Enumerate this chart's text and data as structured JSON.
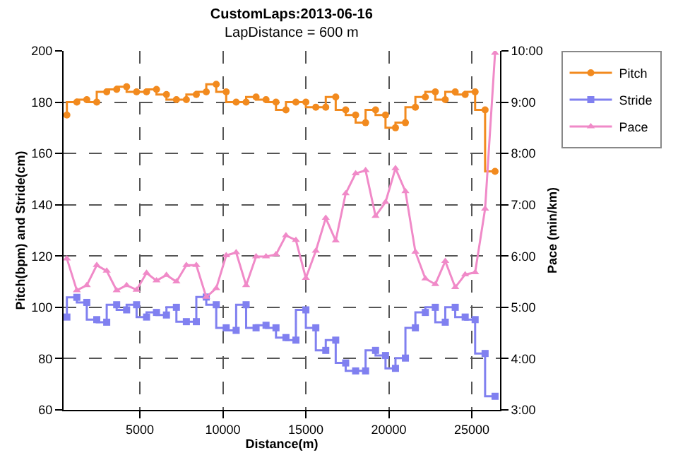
{
  "chart_data": {
    "type": "line",
    "title": "CustomLaps:2013-06-16",
    "subtitle": "LapDistance = 600 m",
    "xlabel": "Distance(m)",
    "ylabel": "Pitch(bpm) and Stride(cm)",
    "y2label": "Pace (min/km)",
    "x": [
      600,
      1200,
      1800,
      2400,
      3000,
      3600,
      4200,
      4800,
      5400,
      6000,
      6600,
      7200,
      7800,
      8400,
      9000,
      9600,
      10200,
      10800,
      11400,
      12000,
      12600,
      13200,
      13800,
      14400,
      15000,
      15600,
      16200,
      16800,
      17400,
      18000,
      18600,
      19200,
      19800,
      20400,
      21000,
      21600,
      22200,
      22800,
      23400,
      24000,
      24600,
      25200,
      25800,
      26400
    ],
    "series": [
      {
        "name": "Pitch",
        "type": "step",
        "marker": "circle",
        "color": "#f28a1e",
        "values": [
          175,
          180,
          181,
          180,
          184,
          185,
          186,
          184,
          184,
          185,
          183,
          181,
          181,
          183,
          184,
          187,
          184,
          180,
          180,
          182,
          181,
          180,
          177,
          180,
          180,
          178,
          178,
          182,
          177,
          175,
          172,
          177,
          175,
          170,
          172,
          178,
          182,
          184,
          181,
          184,
          183,
          184,
          177,
          153
        ]
      },
      {
        "name": "Stride",
        "type": "step",
        "marker": "square",
        "color": "#8080f0",
        "values": [
          96.2,
          103.9,
          101.9,
          95.2,
          94.2,
          101,
          99,
          101,
          96.2,
          98,
          97,
          100,
          94.4,
          94.4,
          104,
          101,
          92,
          91,
          101,
          92,
          93,
          92,
          88.2,
          87.2,
          99,
          92,
          83.2,
          87.2,
          78.3,
          75.2,
          75.2,
          83.2,
          81.2,
          76.2,
          80.2,
          92,
          98,
          100,
          94.2,
          100,
          96.2,
          95.2,
          82,
          65.3
        ]
      },
      {
        "name": "Pace",
        "marker": "triangle",
        "axis": "y2",
        "color": "#f08ac8",
        "values": [
          5.95,
          5.33,
          5.43,
          5.82,
          5.71,
          5.33,
          5.43,
          5.34,
          5.67,
          5.52,
          5.63,
          5.5,
          5.82,
          5.82,
          5.2,
          5.37,
          6.01,
          6.07,
          5.43,
          5.99,
          5.99,
          6.03,
          6.4,
          6.31,
          5.57,
          6.1,
          6.74,
          6.3,
          7.22,
          7.61,
          7.67,
          6.78,
          7.05,
          7.71,
          7.26,
          6.08,
          5.56,
          5.45,
          5.9,
          5.39,
          5.64,
          5.68,
          6.92,
          9.96
        ]
      }
    ],
    "xlim": [
      400,
      26700
    ],
    "xticks": [
      5000,
      10000,
      15000,
      20000,
      25000
    ],
    "ylim": [
      60,
      200
    ],
    "yticks": [
      60,
      80,
      100,
      120,
      140,
      160,
      180,
      200
    ],
    "y2lim": [
      3,
      10
    ],
    "y2ticks": [
      {
        "value": 3,
        "label": "3:00"
      },
      {
        "value": 4,
        "label": "4:00"
      },
      {
        "value": 5,
        "label": "5:00"
      },
      {
        "value": 6,
        "label": "6:00"
      },
      {
        "value": 7,
        "label": "7:00"
      },
      {
        "value": 8,
        "label": "8:00"
      },
      {
        "value": 9,
        "label": "9:00"
      },
      {
        "value": 10,
        "label": "10:00"
      }
    ],
    "grid": true,
    "legend": "top right"
  }
}
